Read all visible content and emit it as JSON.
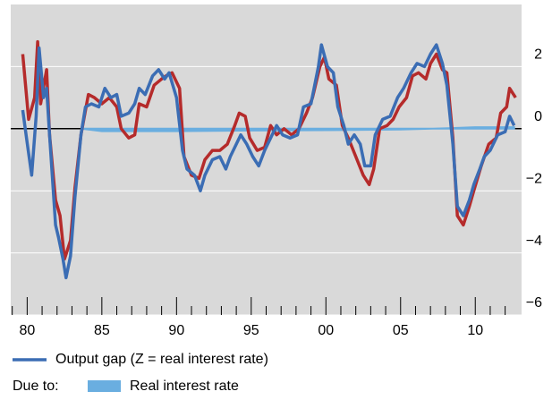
{
  "chart_data": {
    "type": "line",
    "xlim": [
      1978.9,
      2013.1
    ],
    "ylim": [
      -6,
      4
    ],
    "xticks": [
      {
        "value": 1980,
        "label": "80"
      },
      {
        "value": 1985,
        "label": "85"
      },
      {
        "value": 1990,
        "label": "90"
      },
      {
        "value": 1995,
        "label": "95"
      },
      {
        "value": 2000,
        "label": "00"
      },
      {
        "value": 2005,
        "label": "05"
      },
      {
        "value": 2010,
        "label": "10"
      }
    ],
    "xminorticks": [
      1979,
      1981,
      1982,
      1983,
      1984,
      1986,
      1987,
      1988,
      1989,
      1991,
      1992,
      1993,
      1994,
      1996,
      1997,
      1998,
      1999,
      2001,
      2002,
      2003,
      2004,
      2006,
      2007,
      2008,
      2009,
      2011,
      2012
    ],
    "yticks": [
      2,
      0,
      {
        "value": -2,
        "label": "−2"
      },
      {
        "value": -4,
        "label": "−4"
      },
      {
        "value": -6,
        "label": "−6"
      }
    ],
    "grid": true,
    "legend_note": "Due to:",
    "series": [
      {
        "name": "Real interest rate",
        "color": "#6aaee0",
        "style": "area",
        "x": [
          1983.6,
          1985,
          1990,
          1995,
          2000,
          2005,
          2008.5,
          2010,
          2012.6
        ],
        "values": [
          0,
          -0.08,
          -0.08,
          -0.06,
          -0.05,
          -0.03,
          0.02,
          0.05,
          0.05
        ]
      },
      {
        "color": "#b52b2b",
        "style": "line",
        "x": [
          1979.7,
          1980.1,
          1980.5,
          1980.7,
          1980.9,
          1981.3,
          1981.5,
          1981.9,
          1982.2,
          1982.5,
          1982.9,
          1983.2,
          1983.6,
          1984.1,
          1984.5,
          1985.0,
          1985.5,
          1986.0,
          1986.3,
          1986.8,
          1987.2,
          1987.5,
          1988.0,
          1988.5,
          1989.0,
          1989.3,
          1989.7,
          1990.2,
          1990.5,
          1991.0,
          1991.5,
          1991.9,
          1992.4,
          1992.9,
          1993.4,
          1993.9,
          1994.2,
          1994.6,
          1994.9,
          1995.4,
          1995.9,
          1996.3,
          1996.7,
          1997.2,
          1997.7,
          1998.2,
          1998.7,
          1999.1,
          1999.6,
          1999.9,
          2000.2,
          2000.7,
          2001.1,
          2001.5,
          2002.0,
          2002.5,
          2002.9,
          2003.2,
          2003.6,
          2004.1,
          2004.5,
          2004.9,
          2005.4,
          2005.8,
          2006.2,
          2006.7,
          2007.0,
          2007.4,
          2007.8,
          2008.1,
          2008.5,
          2008.8,
          2009.2,
          2009.6,
          2009.9,
          2010.4,
          2010.9,
          2011.4,
          2011.7,
          2012.1,
          2012.3,
          2012.7
        ],
        "values": [
          2.4,
          0.3,
          1.0,
          2.8,
          0.8,
          1.9,
          -0.2,
          -2.3,
          -2.8,
          -4.2,
          -3.6,
          -1.9,
          -0.2,
          1.1,
          1.0,
          0.8,
          1.0,
          0.7,
          0,
          -0.3,
          -0.2,
          0.8,
          0.7,
          1.4,
          1.6,
          1.7,
          1.8,
          1.3,
          -0.9,
          -1.5,
          -1.6,
          -1.0,
          -0.7,
          -0.7,
          -0.5,
          0.1,
          0.5,
          0.4,
          -0.3,
          -0.7,
          -0.6,
          0.1,
          -0.2,
          0,
          -0.2,
          0,
          0.5,
          1.0,
          2.0,
          2.3,
          1.6,
          1.4,
          0.1,
          -0.3,
          -0.9,
          -1.5,
          -1.8,
          -1.3,
          0,
          0.1,
          0.3,
          0.7,
          1.0,
          1.7,
          1.8,
          1.6,
          2.1,
          2.4,
          1.9,
          1.8,
          -0.3,
          -2.8,
          -3.1,
          -2.5,
          -2.0,
          -1.2,
          -0.5,
          -0.3,
          0.5,
          0.7,
          1.3,
          1.0
        ]
      },
      {
        "name": "Output gap (Z = real interest rate)",
        "color": "#3b6db4",
        "style": "line",
        "x": [
          1979.7,
          1980.0,
          1980.3,
          1980.6,
          1980.8,
          1981.1,
          1981.3,
          1981.5,
          1981.9,
          1982.1,
          1982.4,
          1982.6,
          1982.9,
          1983.2,
          1983.6,
          1983.9,
          1984.3,
          1984.8,
          1985.2,
          1985.6,
          1986.0,
          1986.3,
          1986.8,
          1987.2,
          1987.5,
          1987.9,
          1988.4,
          1988.8,
          1989.2,
          1989.5,
          1990.0,
          1990.4,
          1990.7,
          1991.2,
          1991.6,
          1991.9,
          1992.4,
          1992.9,
          1993.3,
          1993.6,
          1994.0,
          1994.3,
          1994.7,
          1995.1,
          1995.5,
          1995.9,
          1996.3,
          1996.7,
          1997.1,
          1997.6,
          1998.1,
          1998.5,
          1999.0,
          1999.5,
          1999.7,
          2000.1,
          2000.5,
          2000.8,
          2001.2,
          2001.5,
          2001.9,
          2002.3,
          2002.6,
          2003.0,
          2003.3,
          2003.8,
          2004.3,
          2004.8,
          2005.2,
          2005.7,
          2006.1,
          2006.6,
          2007.0,
          2007.4,
          2007.8,
          2008.1,
          2008.5,
          2008.8,
          2009.2,
          2009.6,
          2009.9,
          2010.3,
          2010.6,
          2011.0,
          2011.5,
          2012.0,
          2012.3,
          2012.6
        ],
        "values": [
          0.6,
          -0.46,
          -1.5,
          0.4,
          2.6,
          1.0,
          1.3,
          -0.2,
          -3.1,
          -3.5,
          -4.2,
          -4.8,
          -4.1,
          -2.2,
          -0.2,
          0.7,
          0.8,
          0.7,
          1.3,
          1.0,
          1.1,
          0.4,
          0.5,
          0.8,
          1.3,
          1.1,
          1.7,
          1.9,
          1.6,
          1.8,
          1.0,
          -0.7,
          -1.3,
          -1.5,
          -2.0,
          -1.5,
          -1.0,
          -0.9,
          -1.3,
          -0.9,
          -0.5,
          -0.2,
          -0.5,
          -0.9,
          -1.2,
          -0.7,
          -0.3,
          0.1,
          -0.2,
          -0.3,
          -0.2,
          0.7,
          0.8,
          2.0,
          2.7,
          2.0,
          1.8,
          0.7,
          0.1,
          -0.5,
          -0.2,
          -0.5,
          -1.2,
          -1.2,
          -0.2,
          0.3,
          0.4,
          1.0,
          1.3,
          1.8,
          2.1,
          2.0,
          2.4,
          2.7,
          2.1,
          1.4,
          -0.5,
          -2.5,
          -2.8,
          -2.3,
          -1.8,
          -1.3,
          -0.9,
          -0.7,
          -0.2,
          -0.1,
          0.4,
          0.1
        ]
      }
    ]
  }
}
